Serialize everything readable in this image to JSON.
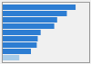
{
  "chart_data": {
    "type": "bar",
    "orientation": "horizontal",
    "categories": [
      null,
      null,
      null,
      null,
      null,
      null,
      null,
      null,
      null
    ],
    "values": [
      76,
      67,
      57,
      54,
      40,
      37,
      36,
      30,
      18
    ],
    "colors": [
      "#2d7dd2",
      "#2d7dd2",
      "#2d7dd2",
      "#2d7dd2",
      "#2d7dd2",
      "#2d7dd2",
      "#2d7dd2",
      "#2d7dd2",
      "#a8cce8"
    ],
    "xlim": [
      0,
      90
    ],
    "tick_labels": false,
    "grid": false
  }
}
